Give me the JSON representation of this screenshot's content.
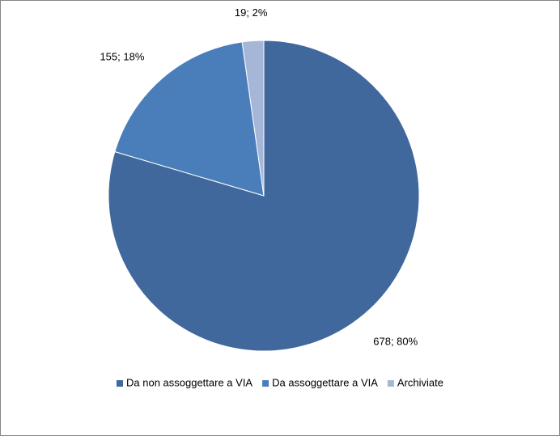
{
  "chart_data": {
    "type": "pie",
    "categories": [
      "Da non assoggettare a VIA",
      "Da assoggettare a VIA",
      "Archiviate"
    ],
    "values": [
      678,
      155,
      19
    ],
    "value_labels": [
      "678; 80%",
      "155; 18%",
      "19; 2%"
    ],
    "colors": [
      "#41689c",
      "#4a7ebb",
      "#a5b6d7"
    ],
    "legend": "bottom"
  }
}
